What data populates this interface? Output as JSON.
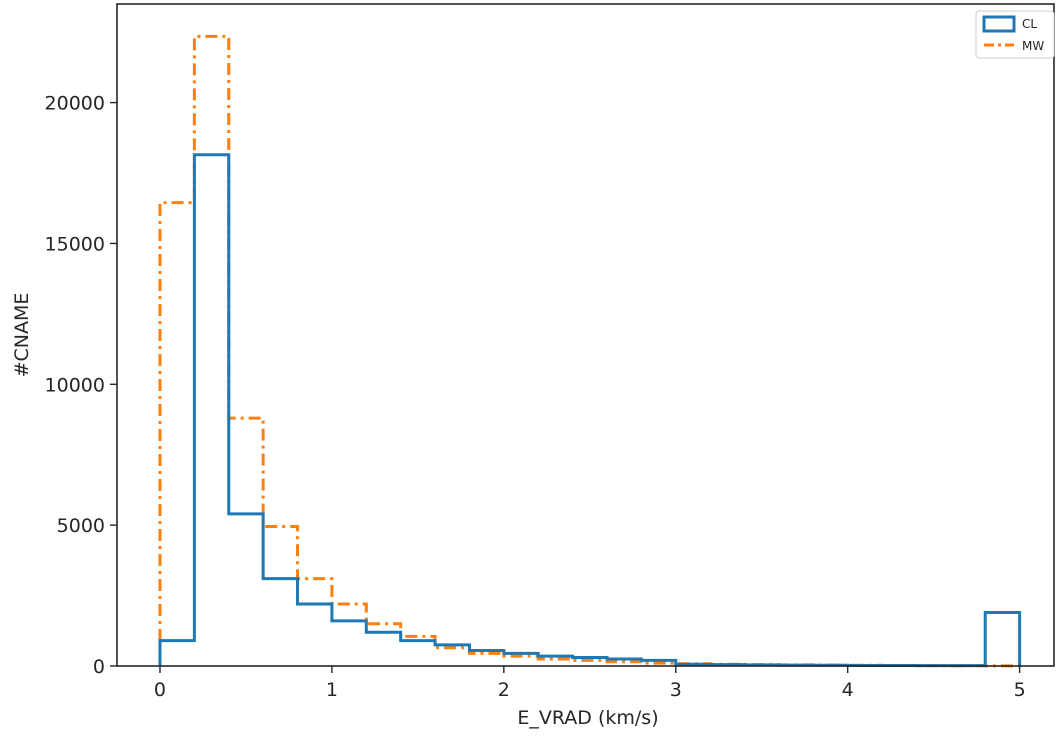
{
  "chart_data": {
    "type": "histogram",
    "title": "",
    "xlabel": "E_VRAD (km/s)",
    "ylabel": "#CNAME",
    "xlim": [
      -0.25,
      5.2
    ],
    "ylim": [
      0,
      23500
    ],
    "x_ticks": [
      0,
      1,
      2,
      3,
      4,
      5
    ],
    "y_ticks": [
      0,
      5000,
      10000,
      15000,
      20000
    ],
    "grid": false,
    "legend_position": "top-right",
    "bin_edges": [
      0,
      0.2,
      0.4,
      0.6,
      0.8,
      1.0,
      1.2,
      1.4,
      1.6,
      1.8,
      2.0,
      2.2,
      2.4,
      2.6,
      2.8,
      3.0,
      3.2,
      3.4,
      3.6,
      3.8,
      4.0,
      4.2,
      4.4,
      4.6,
      4.8,
      5.0
    ],
    "series": [
      {
        "name": "CL",
        "color": "#1f77b4",
        "style": "solid",
        "values": [
          900,
          18150,
          5400,
          3100,
          2200,
          1600,
          1200,
          900,
          750,
          550,
          450,
          350,
          300,
          250,
          200,
          60,
          50,
          40,
          30,
          25,
          20,
          20,
          15,
          15,
          1900
        ]
      },
      {
        "name": "MW",
        "color": "#ff7f0e",
        "style": "dashdot",
        "values": [
          16450,
          22350,
          8800,
          4950,
          3100,
          2200,
          1500,
          1050,
          650,
          450,
          350,
          250,
          200,
          150,
          100,
          80,
          60,
          50,
          40,
          30,
          25,
          20,
          15,
          10,
          5
        ]
      }
    ]
  }
}
